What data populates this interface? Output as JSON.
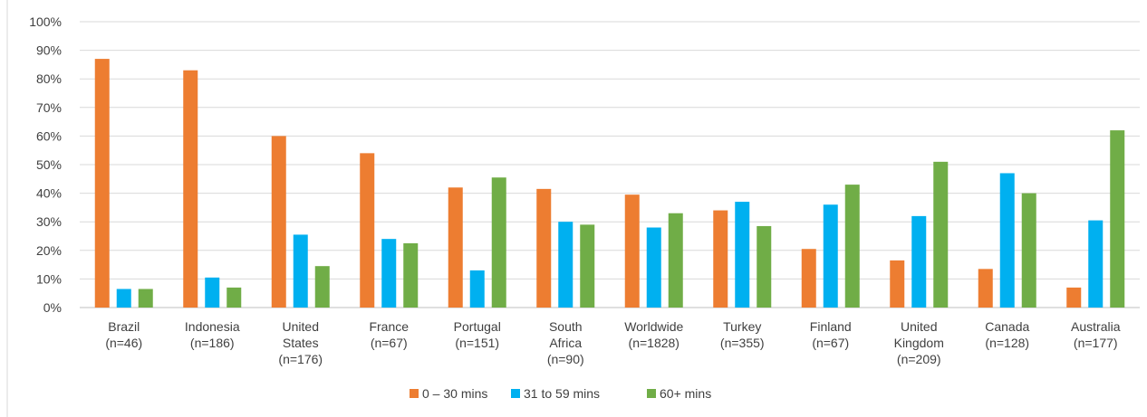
{
  "chart_data": {
    "type": "bar",
    "categories": [
      [
        "Brazil",
        "(n=46)"
      ],
      [
        "Indonesia",
        "(n=186)"
      ],
      [
        "United",
        "States",
        "(n=176)"
      ],
      [
        "France",
        "(n=67)"
      ],
      [
        "Portugal",
        "(n=151)"
      ],
      [
        "South",
        "Africa",
        "(n=90)"
      ],
      [
        "Worldwide",
        "(n=1828)"
      ],
      [
        "Turkey",
        "(n=355)"
      ],
      [
        "Finland",
        "(n=67)"
      ],
      [
        "United",
        "Kingdom",
        "(n=209)"
      ],
      [
        "Canada",
        "(n=128)"
      ],
      [
        "Australia",
        "(n=177)"
      ]
    ],
    "series": [
      {
        "name": "0 – 30 mins",
        "color": "#ED7D31",
        "values": [
          87,
          83,
          60,
          54,
          42,
          41.5,
          39.5,
          34,
          20.5,
          16.5,
          13.5,
          7
        ]
      },
      {
        "name": "31 to 59 mins",
        "color": "#00B0F0",
        "values": [
          6.5,
          10.5,
          25.5,
          24,
          13,
          30,
          28,
          37,
          36,
          32,
          47,
          30.5
        ]
      },
      {
        "name": "60+ mins",
        "color": "#70AD47",
        "values": [
          6.5,
          7,
          14.5,
          22.5,
          45.5,
          29,
          33,
          28.5,
          43,
          51,
          40,
          62
        ]
      }
    ],
    "yticks": [
      "0%",
      "10%",
      "20%",
      "30%",
      "40%",
      "50%",
      "60%",
      "70%",
      "80%",
      "90%",
      "100%"
    ],
    "ylim": [
      0,
      100
    ],
    "grid": true,
    "legend_position": "bottom",
    "title": "",
    "xlabel": "",
    "ylabel": ""
  }
}
